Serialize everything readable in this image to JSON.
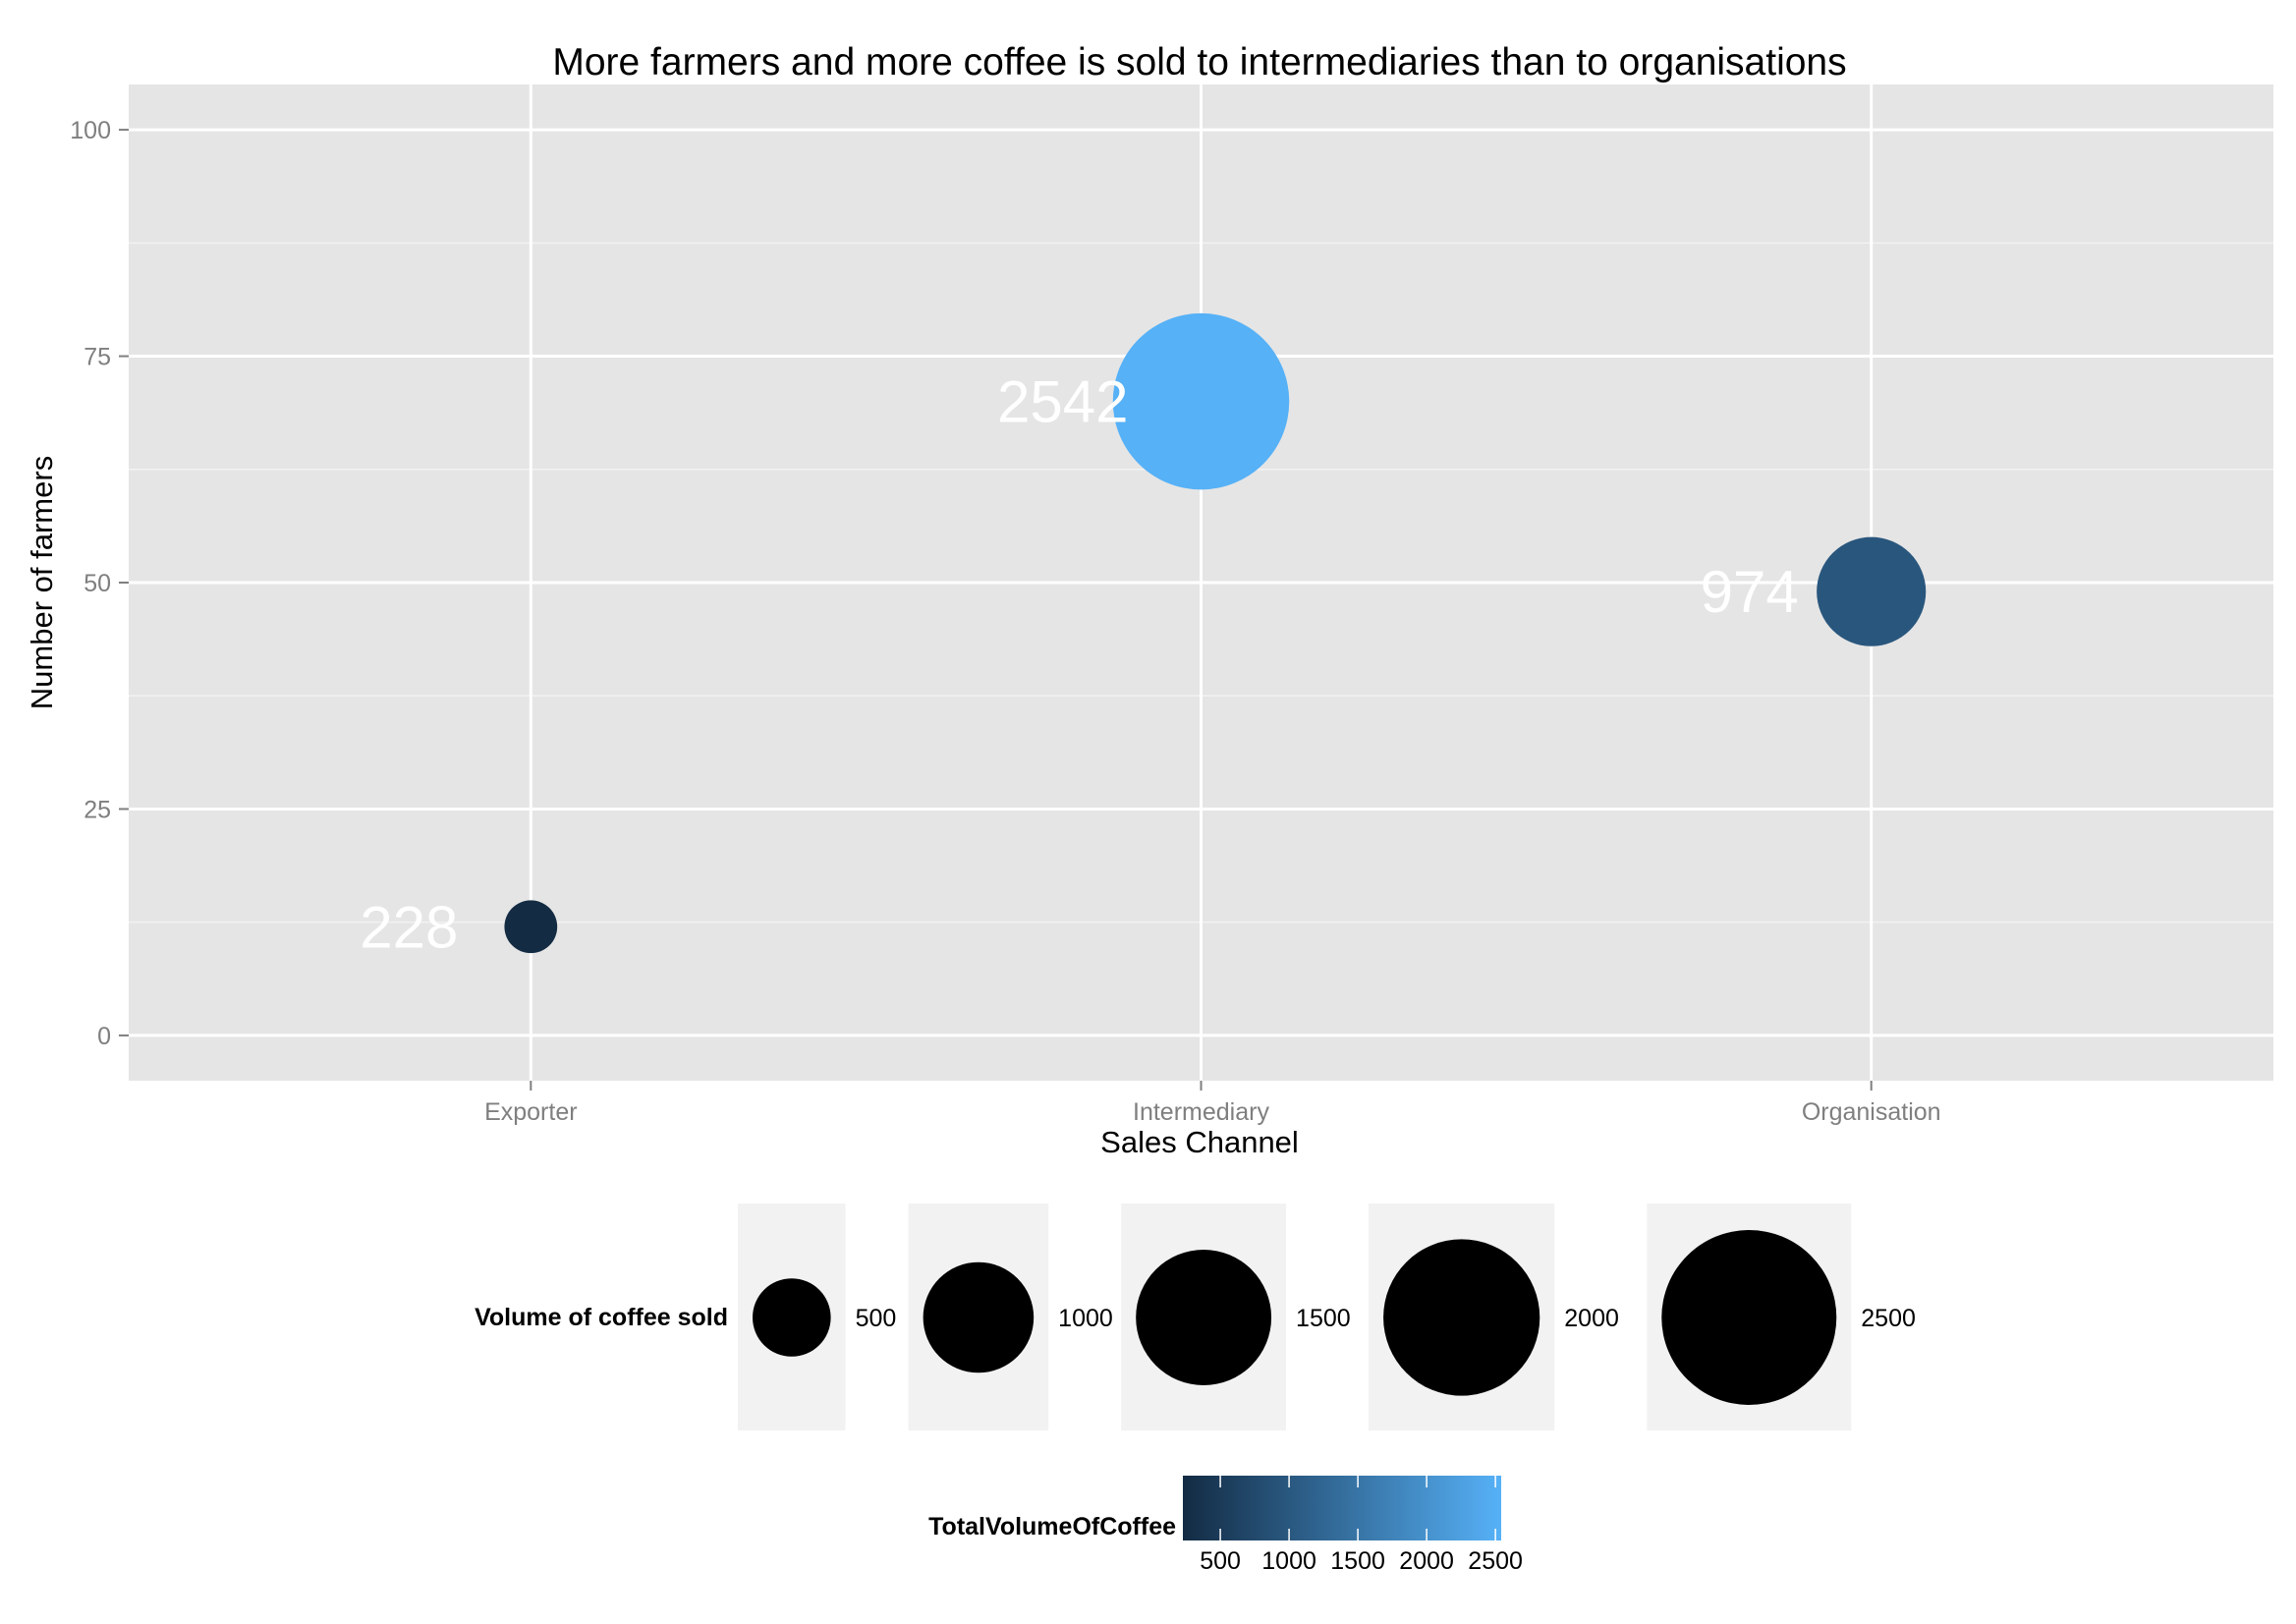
{
  "chart_data": {
    "type": "scatter",
    "title": "More farmers and more coffee is sold to intermediaries than to organisations",
    "xlabel": "Sales Channel",
    "ylabel": "Number of farmers",
    "categories": [
      "Exporter",
      "Intermediary",
      "Organisation"
    ],
    "points": [
      {
        "category": "Exporter",
        "farmers": 12,
        "volume": 228,
        "label": "228"
      },
      {
        "category": "Intermediary",
        "farmers": 70,
        "volume": 2542,
        "label": "2542"
      },
      {
        "category": "Organisation",
        "farmers": 49,
        "volume": 974,
        "label": "974"
      }
    ],
    "ylim": [
      -5,
      105
    ],
    "y_ticks": [
      0,
      25,
      50,
      75,
      100
    ],
    "grid": true,
    "size_legend": {
      "title": "Volume of coffee sold",
      "values": [
        500,
        1000,
        1500,
        2000,
        2500
      ],
      "labels": [
        "500",
        "1000",
        "1500",
        "2000",
        "2500"
      ]
    },
    "color_legend": {
      "title": "TotalVolumeOfCoffee",
      "min": 228,
      "max": 2542,
      "low_color": "#132b43",
      "high_color": "#56b1f7",
      "ticks": [
        500,
        1000,
        1500,
        2000,
        2500
      ],
      "labels": [
        "500",
        "1000",
        "1500",
        "2000",
        "2500"
      ]
    },
    "colors": {
      "panel_background": "#e5e5e5",
      "grid_major": "#ffffff",
      "grid_minor": "#f2f2f2",
      "legend_key_background": "#f2f2f2"
    }
  }
}
